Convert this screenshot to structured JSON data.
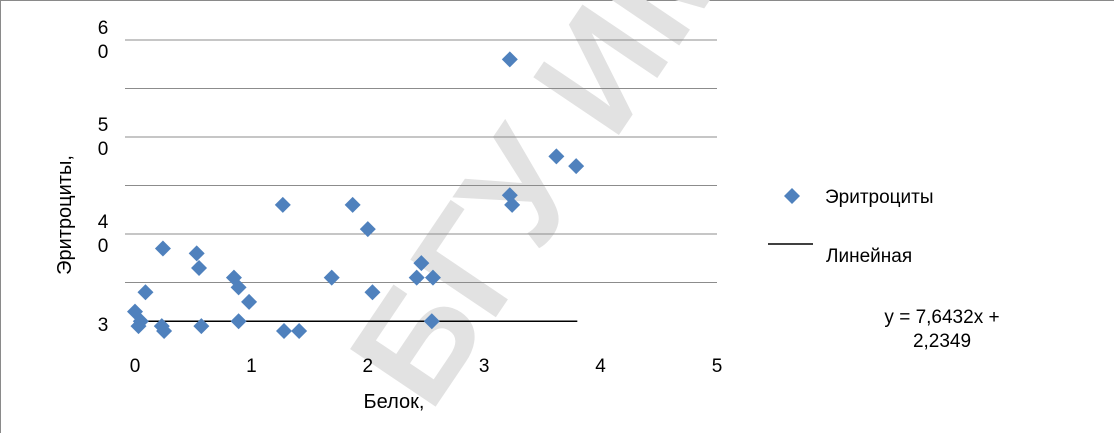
{
  "chart_data": {
    "type": "scatter",
    "title": "",
    "xlabel": "Белок,",
    "ylabel": "Эритроциты,",
    "xlim": [
      0,
      5
    ],
    "ylim": [
      0,
      60
    ],
    "x_ticks": [
      0,
      1,
      2,
      3,
      4,
      5
    ],
    "y_tick_labels": [
      {
        "line1": "3",
        "line2": "",
        "value": 0
      },
      {
        "line1": "4",
        "line2": "0",
        "value": 20
      },
      {
        "line1": "5",
        "line2": "0",
        "value": 40
      },
      {
        "line1": "6",
        "line2": "0",
        "value": 60
      }
    ],
    "y_gridlines": [
      10,
      20,
      30,
      40,
      50,
      60
    ],
    "grid": true,
    "series": [
      {
        "name": "Эритроциты",
        "color": "#4f81bd",
        "marker": "diamond",
        "points": [
          {
            "x": 0.0,
            "y": 4.0
          },
          {
            "x": 0.03,
            "y": 1.0
          },
          {
            "x": 0.05,
            "y": 2.0
          },
          {
            "x": 0.09,
            "y": 8.0
          },
          {
            "x": 0.23,
            "y": 1.0
          },
          {
            "x": 0.25,
            "y": 0.0
          },
          {
            "x": 0.24,
            "y": 17.0
          },
          {
            "x": 0.53,
            "y": 16.0
          },
          {
            "x": 0.55,
            "y": 13.0
          },
          {
            "x": 0.57,
            "y": 1.0
          },
          {
            "x": 0.85,
            "y": 11.0
          },
          {
            "x": 0.89,
            "y": 9.0
          },
          {
            "x": 0.89,
            "y": 2.0
          },
          {
            "x": 0.98,
            "y": 6.0
          },
          {
            "x": 1.27,
            "y": 26.0
          },
          {
            "x": 1.28,
            "y": 0.0
          },
          {
            "x": 1.41,
            "y": 0.0
          },
          {
            "x": 1.69,
            "y": 11.0
          },
          {
            "x": 1.87,
            "y": 26.0
          },
          {
            "x": 2.0,
            "y": 21.0
          },
          {
            "x": 2.04,
            "y": 8.0
          },
          {
            "x": 2.42,
            "y": 11.0
          },
          {
            "x": 2.46,
            "y": 14.0
          },
          {
            "x": 2.56,
            "y": 11.0
          },
          {
            "x": 2.55,
            "y": 2.0
          },
          {
            "x": 3.22,
            "y": 28.0
          },
          {
            "x": 3.24,
            "y": 26.0
          },
          {
            "x": 3.22,
            "y": 56.0
          },
          {
            "x": 3.62,
            "y": 36.0
          },
          {
            "x": 3.79,
            "y": 34.0
          }
        ]
      }
    ],
    "trendline": {
      "name": "Линейная",
      "color": "#000000",
      "equation": "y = 7,6432x +",
      "equation_line2": "2,2349",
      "x_start": 0.0,
      "x_end": 3.8,
      "y_value": 2.0
    },
    "legend_position": "right"
  },
  "watermark": {
    "text": "БГУ ИМЕНИ Ф. СК",
    "color": "#e4e4e4"
  }
}
